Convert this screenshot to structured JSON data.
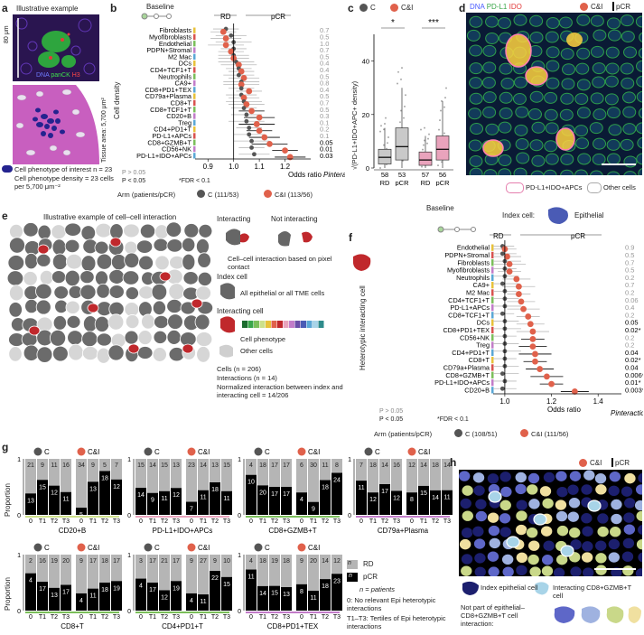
{
  "panel_labels": {
    "a": "a",
    "b": "b",
    "c": "c",
    "d": "d",
    "e": "e",
    "f": "f",
    "g": "g",
    "h": "h"
  },
  "a": {
    "title": "Illustrative example",
    "scale": "80 μm",
    "stain": [
      "DNA",
      "panCK",
      "H3"
    ],
    "tissue_area": "Tissue area: 5,700 μm²",
    "legend_cell": "Cell phenotype of interest n = 23",
    "density": "Cell phenotype density = 23 cells per 5,700 μm⁻²"
  },
  "b": {
    "baseline": "Baseline",
    "rd": "RD",
    "pcr": "pCR",
    "ylabel": "Cell density",
    "xlabel": "Odds ratio",
    "pint": "Pinteraction",
    "legend_p1": "P > 0.05",
    "legend_p2": "P < 0.05",
    "legend_fdr": "*FDR < 0.1",
    "arm_label": "Arm (patients/pCR)",
    "arm_c": "C (111/53)",
    "arm_ci": "C&I (113/56)"
  },
  "c": {
    "legend_c": "C",
    "legend_ci": "C&I",
    "ylabel": "√(PD-L1+IDO+APC+ density)",
    "sig1": "*",
    "sig2": "***",
    "counts": [
      "58",
      "53",
      "57",
      "56"
    ],
    "groups": [
      "RD",
      "pCR",
      "RD",
      "pCR"
    ]
  },
  "d": {
    "stain": [
      "DNA",
      "PD-L1",
      "IDO"
    ],
    "legend_ci": "C&I",
    "legend_pcr": "pCR",
    "legend_apc": "PD-L1+IDO+APCs",
    "legend_other": "Other cells"
  },
  "e": {
    "title": "Illustrative example of cell–cell interaction",
    "interacting": "Interacting",
    "not_interacting": "Not interacting",
    "contact": "Cell–cell interaction based on pixel contact",
    "index_cell": "Index cell",
    "all_cells": "All epithelial or all TME cells",
    "interacting_cell": "Interacting cell",
    "phenotype": "Cell phenotype",
    "other": "Other cells",
    "cells": "Cells (n = 206)",
    "interactions": "Interactions (n = 14)",
    "normalized": "Normalized interaction between index and interacting cell = 14/206"
  },
  "f": {
    "baseline": "Baseline",
    "index_cell": "Index cell:",
    "epithelial": "Epithelial",
    "rd": "RD",
    "pcr": "pCR",
    "ylabel": "Heterotypic interacting cell",
    "xlabel": "Odds ratio",
    "pint": "Pinteraction",
    "legend_p1": "P > 0.05",
    "legend_p2": "P < 0.05",
    "legend_fdr": "*FDR < 0.1",
    "arm_label": "Arm (patients/pCR)",
    "arm_c": "C (108/51)",
    "arm_ci": "C&I (111/56)"
  },
  "g": {
    "ylabel": "Proportion",
    "legend_rd": "RD",
    "legend_pcr": "pCR",
    "legend_n": "n = patients",
    "note0": "0: No relevant Epi heterotypic interactions",
    "note1": "T1–T3: Tertiles of Epi heterotypic interactions",
    "arm_c": "C",
    "arm_ci": "C&I"
  },
  "h": {
    "legend_ci": "C&I",
    "legend_pcr": "pCR",
    "index": "Index epithelial cell",
    "interacting": "Interacting CD8+GZMB+T cell",
    "notpart": "Not part of epithelial–CD8+GZMB+T cell interaction:"
  },
  "colors": {
    "c_arm": "#555555",
    "ci_arm": "#e0614b",
    "pcr": "#000000",
    "rd": "#b5b5b5"
  },
  "chart_data": [
    {
      "type": "forest",
      "panel": "b",
      "title": "",
      "xlabel": "Odds ratio",
      "xlim": [
        0.85,
        1.3
      ],
      "xticks": [
        0.9,
        1.0,
        1.1,
        1.2
      ],
      "categories": [
        "Fibroblasts",
        "Myofibroblasts",
        "Endothelial",
        "PDPN+Stromal",
        "M2 Mac",
        "DCs",
        "CD4+TCF1+T",
        "Neutrophils",
        "CA9+",
        "CD8+PD1+TEX",
        "CD79a+Plasma",
        "CD8+T",
        "CD8+TCF1+T",
        "CD20+B",
        "Treg",
        "CD4+PD1+T",
        "PD-L1+APCs",
        "CD8+GZMB+T",
        "CD56+NK",
        "PD-L1+IDO+APCs"
      ],
      "series": [
        {
          "name": "C (111/53)",
          "values": [
            0.97,
            0.99,
            1.0,
            1.0,
            1.0,
            1.01,
            1.02,
            1.02,
            1.03,
            1.03,
            1.03,
            1.04,
            1.04,
            1.05,
            1.05,
            1.06,
            1.06,
            1.07,
            1.07,
            1.08
          ]
        },
        {
          "name": "C&I (113/56)",
          "values": [
            0.96,
            0.97,
            0.97,
            0.99,
            1.0,
            1.02,
            1.03,
            1.04,
            1.03,
            1.06,
            1.04,
            1.05,
            1.07,
            1.1,
            1.09,
            1.1,
            1.12,
            1.14,
            1.2,
            1.22
          ]
        }
      ],
      "p_interaction": [
        "0.7",
        "0.5",
        "1.0",
        "0.7",
        "0.5",
        "0.4",
        "0.4",
        "0.5",
        "0.8",
        "0.4",
        "0.5",
        "0.7",
        "0.5",
        "0.3",
        "0.1",
        "0.2",
        "0.1",
        "0.05",
        "0.01",
        "0.03"
      ]
    },
    {
      "type": "box",
      "panel": "c",
      "categories": [
        "C RD",
        "C pCR",
        "C&I RD",
        "C&I pCR"
      ],
      "ylim": [
        0,
        50
      ],
      "yticks": [
        0,
        20,
        40
      ],
      "n": [
        58,
        53,
        57,
        56
      ],
      "median": [
        4,
        8,
        3,
        7
      ],
      "q1": [
        1.5,
        3,
        1,
        3
      ],
      "q3": [
        7,
        15,
        6,
        12
      ],
      "whisker_low": [
        0,
        0,
        0,
        0
      ],
      "whisker_high": [
        15,
        30,
        12,
        25
      ]
    },
    {
      "type": "forest",
      "panel": "f",
      "xlabel": "Odds ratio",
      "xlim": [
        0.95,
        1.5
      ],
      "xticks": [
        1.0,
        1.2,
        1.4
      ],
      "categories": [
        "Endothelial",
        "PDPN+Stromal",
        "Fibroblasts",
        "Myofibroblasts",
        "Neutrophils",
        "CA9+",
        "M2 Mac",
        "CD4+TCF1+T",
        "PD-L1+APCs",
        "CD8+TCF1+T",
        "DCs",
        "CD8+PD1+TEX",
        "CD56+NK",
        "Treg",
        "CD4+PD1+T",
        "CD8+T",
        "CD79a+Plasma",
        "CD8+GZMB+T",
        "PD-L1+IDO+APCs",
        "CD20+B"
      ],
      "series": [
        {
          "name": "C (108/51)",
          "values": [
            0.99,
            0.99,
            1.0,
            1.0,
            1.0,
            0.99,
            1.0,
            1.0,
            1.0,
            0.99,
            1.0,
            1.0,
            1.0,
            1.0,
            1.0,
            1.0,
            1.0,
            0.99,
            1.0,
            0.99
          ]
        },
        {
          "name": "C&I (111/56)",
          "values": [
            1.0,
            1.01,
            1.02,
            1.02,
            1.05,
            1.06,
            1.06,
            1.07,
            1.08,
            1.1,
            1.11,
            1.12,
            1.12,
            1.12,
            1.13,
            1.13,
            1.15,
            1.18,
            1.2,
            1.3
          ]
        }
      ],
      "p_interaction": [
        "0.9",
        "0.5",
        "0.7",
        "0.5",
        "0.2",
        "0.7",
        "0.2",
        "0.06",
        "0.4",
        "0.2",
        "0.05",
        "0.02*",
        "0.2",
        "0.2",
        "0.04",
        "0.02*",
        "0.04",
        "0.006*",
        "0.01*",
        "0.003*"
      ]
    },
    {
      "type": "stacked_bar",
      "panel": "g",
      "categories": [
        "0",
        "T1",
        "T2",
        "T3"
      ],
      "groups": [
        {
          "name": "CD20+B",
          "c": {
            "rd": [
              21,
              9,
              11,
              16
            ],
            "pcr": [
              13,
              15,
              12,
              11
            ]
          },
          "ci": {
            "rd": [
              34,
              9,
              5,
              7
            ],
            "pcr": [
              5,
              13,
              18,
              12
            ]
          }
        },
        {
          "name": "PD-L1+IDO+APCs",
          "c": {
            "rd": [
              15,
              14,
              15,
              13
            ],
            "pcr": [
              14,
              9,
              11,
              12
            ]
          },
          "ci": {
            "rd": [
              23,
              14,
              13,
              15
            ],
            "pcr": [
              7,
              11,
              18,
              11
            ]
          }
        },
        {
          "name": "CD8+GZMB+T",
          "c": {
            "rd": [
              4,
              18,
              17,
              17
            ],
            "pcr": [
              10,
              20,
              17,
              17
            ]
          },
          "ci": {
            "rd": [
              6,
              30,
              11,
              8
            ],
            "pcr": [
              4,
              9,
              18,
              24
            ]
          }
        },
        {
          "name": "CD79a+Plasma",
          "c": {
            "rd": [
              7,
              18,
              14,
              16
            ],
            "pcr": [
              11,
              12,
              17,
              12
            ]
          },
          "ci": {
            "rd": [
              12,
              14,
              18,
              14
            ],
            "pcr": [
              8,
              15,
              14,
              11
            ]
          }
        },
        {
          "name": "CD8+T",
          "c": {
            "rd": [
              2,
              16,
              19,
              20
            ],
            "pcr": [
              4,
              17,
              13,
              17
            ]
          },
          "ci": {
            "rd": [
              9,
              17,
              18,
              17
            ],
            "pcr": [
              4,
              11,
              18,
              19
            ]
          }
        },
        {
          "name": "CD4+PD1+T",
          "c": {
            "rd": [
              3,
              17,
              21,
              17
            ],
            "pcr": [
              4,
              17,
              12,
              19
            ]
          },
          "ci": {
            "rd": [
              9,
              27,
              9,
              10
            ],
            "pcr": [
              4,
              11,
              22,
              15
            ]
          }
        },
        {
          "name": "CD8+PD1+TEX",
          "c": {
            "rd": [
              4,
              18,
              19,
              18
            ],
            "pcr": [
              11,
              14,
              15,
              13
            ]
          },
          "ci": {
            "rd": [
              9,
              20,
              14,
              12
            ],
            "pcr": [
              8,
              11,
              18,
              23
            ]
          }
        }
      ]
    }
  ]
}
